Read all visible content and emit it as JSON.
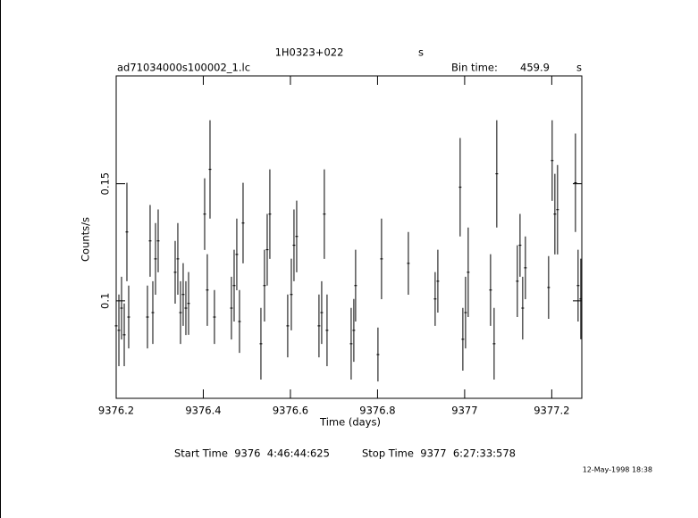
{
  "chart_data": {
    "type": "errorbar",
    "title": "1H0323+022",
    "title_unit": "s",
    "file_name": "ad71034000s100002_1.lc",
    "bin_time_label": "Bin time:",
    "bin_time": 459.9,
    "bin_time_unit": "s",
    "xlabel": "Time (days)",
    "ylabel": "Counts/s",
    "start_time": "Start Time  9376  4:46:44:625",
    "stop_time": "Stop Time  9377  6:27:33:578",
    "date_stamp": "12-May-1998 18:38",
    "color": "#000000",
    "xlim": [
      9376.2,
      9377.269
    ],
    "ylim": [
      0.0584,
      0.196
    ],
    "xticks": [
      9376.2,
      9376.4,
      9376.6,
      9376.8,
      9377,
      9377.2
    ],
    "yticks": [
      0.1,
      0.15
    ],
    "x": [
      9376.2,
      9376.2062,
      9376.2123,
      9376.2185,
      9376.2246,
      9376.2287,
      9376.2718,
      9376.2779,
      9376.2841,
      9376.2903,
      9376.2964,
      9376.3354,
      9376.3415,
      9376.3477,
      9376.3538,
      9376.36,
      9376.3662,
      9376.4031,
      9376.4092,
      9376.4154,
      9376.4256,
      9376.4646,
      9376.4708,
      9376.4769,
      9376.4831,
      9376.4913,
      9376.5323,
      9376.5405,
      9376.5467,
      9376.5528,
      9376.5938,
      9376.6021,
      9376.6082,
      9376.6144,
      9376.6656,
      9376.6718,
      9376.6779,
      9376.6841,
      9376.7395,
      9376.7456,
      9376.7497,
      9376.801,
      9376.8092,
      9376.8708,
      9376.9323,
      9376.9385,
      9376.9897,
      9376.9959,
      9377.0021,
      9377.0082,
      9377.0595,
      9377.0677,
      9377.0738,
      9377.121,
      9377.1272,
      9377.1333,
      9377.1395,
      9377.1928,
      9377.201,
      9377.2072,
      9377.2133,
      9377.2544,
      9377.2605,
      9377.2667
    ],
    "values": [
      0.0893,
      0.0874,
      0.0969,
      0.0855,
      0.1294,
      0.0931,
      0.0931,
      0.1256,
      0.095,
      0.1179,
      0.1256,
      0.1122,
      0.1179,
      0.095,
      0.1027,
      0.0969,
      0.0989,
      0.137,
      0.1046,
      0.1561,
      0.0931,
      0.0969,
      0.1065,
      0.1198,
      0.0912,
      0.1332,
      0.0817,
      0.1065,
      0.1218,
      0.137,
      0.0893,
      0.1027,
      0.1237,
      0.1275,
      0.0893,
      0.095,
      0.137,
      0.0874,
      0.0817,
      0.0874,
      0.1065,
      0.0771,
      0.1179,
      0.116,
      0.1008,
      0.1084,
      0.1485,
      0.0836,
      0.095,
      0.1122,
      0.1046,
      0.0817,
      0.1542,
      0.1084,
      0.1237,
      0.0969,
      0.1141,
      0.1057,
      0.1599,
      0.137,
      0.1389,
      0.1504,
      0.1065,
      0.1008
    ],
    "errors": [
      0.0172,
      0.0153,
      0.0134,
      0.0134,
      0.021,
      0.0134,
      0.0134,
      0.0153,
      0.0134,
      0.0153,
      0.0134,
      0.0134,
      0.0153,
      0.0134,
      0.0134,
      0.0115,
      0.0134,
      0.0153,
      0.0153,
      0.021,
      0.0115,
      0.0134,
      0.0153,
      0.0153,
      0.0134,
      0.0172,
      0.0153,
      0.0153,
      0.0153,
      0.0191,
      0.0134,
      0.0153,
      0.0153,
      0.0153,
      0.0134,
      0.0134,
      0.0191,
      0.0153,
      0.0153,
      0.0134,
      0.0153,
      0.0115,
      0.0172,
      0.0134,
      0.0115,
      0.0134,
      0.021,
      0.0134,
      0.0153,
      0.0191,
      0.0153,
      0.0153,
      0.0229,
      0.0153,
      0.0134,
      0.0134,
      0.0134,
      0.0134,
      0.0172,
      0.0172,
      0.0191,
      0.021,
      0.0153,
      0.0172
    ]
  }
}
